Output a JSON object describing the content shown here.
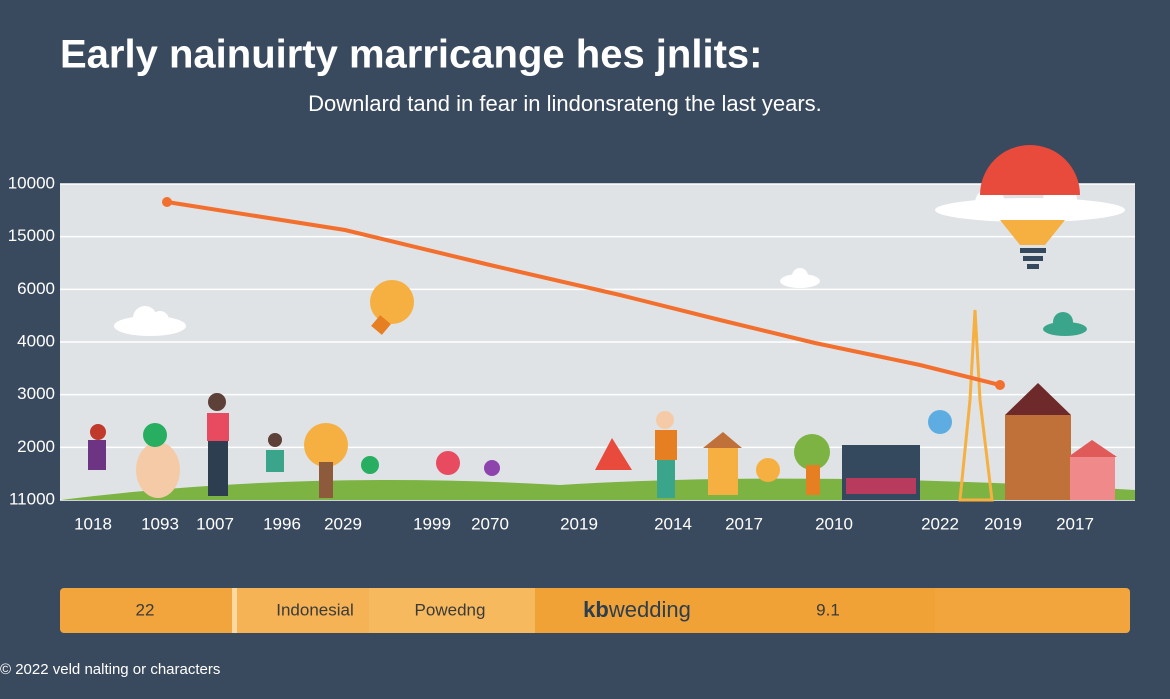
{
  "header": {
    "title": "Early nainuirty marricange hes jnlits:",
    "subtitle": "Downlard tand in fear in lindonsrateng the last years."
  },
  "chart": {
    "y_labels": [
      "10000",
      "15000",
      "6000",
      "4000",
      "3000",
      "2000",
      "11000"
    ],
    "x_labels": [
      "1018",
      "1093",
      "1007",
      "1996",
      "2029",
      "1999",
      "2070",
      "2019",
      "2014",
      "2017",
      "2010",
      "2022",
      "2019",
      "2017"
    ]
  },
  "footer_bar": {
    "items": [
      "22",
      "Indonesial",
      "Powedng",
      "9.1"
    ],
    "brand": {
      "bold": "kb",
      "rest": "wedding"
    }
  },
  "footer": "© 2022 veld nalting or characters"
}
